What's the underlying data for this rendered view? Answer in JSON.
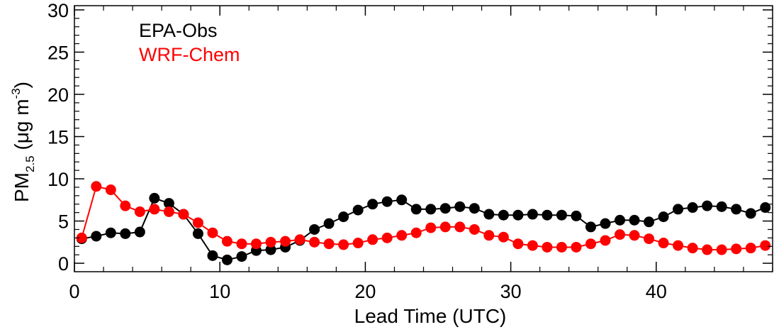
{
  "chart_data": {
    "type": "line",
    "title": "",
    "xlabel": "Lead Time (UTC)",
    "ylabel": {
      "base": "PM",
      "subscript": "2.5",
      "units_prefix": " (μg m",
      "superscript": "-3",
      "units_suffix": ")"
    },
    "xlim": [
      0,
      48
    ],
    "ylim": [
      -1,
      30.5
    ],
    "x_ticks": [
      0,
      10,
      20,
      30,
      40
    ],
    "y_ticks": [
      0,
      5,
      10,
      15,
      20,
      25,
      30
    ],
    "grid": false,
    "legend_position": "top-left",
    "x": [
      0.5,
      1.5,
      2.5,
      3.5,
      4.5,
      5.5,
      6.5,
      7.5,
      8.5,
      9.5,
      10.5,
      11.5,
      12.5,
      13.5,
      14.5,
      15.5,
      16.5,
      17.5,
      18.5,
      19.5,
      20.5,
      21.5,
      22.5,
      23.5,
      24.5,
      25.5,
      26.5,
      27.5,
      28.5,
      29.5,
      30.5,
      31.5,
      32.5,
      33.5,
      34.5,
      35.5,
      36.5,
      37.5,
      38.5,
      39.5,
      40.5,
      41.5,
      42.5,
      43.5,
      44.5,
      45.5,
      46.5,
      47.5
    ],
    "series": [
      {
        "name": "EPA-Obs",
        "color": "#000000",
        "values": [
          2.9,
          3.2,
          3.6,
          3.5,
          3.7,
          7.7,
          7.1,
          5.8,
          3.5,
          0.9,
          0.4,
          0.8,
          1.5,
          1.6,
          1.9,
          2.7,
          4.0,
          4.7,
          5.5,
          6.3,
          7.0,
          7.3,
          7.5,
          6.4,
          6.4,
          6.5,
          6.7,
          6.5,
          5.8,
          5.7,
          5.7,
          5.8,
          5.7,
          5.7,
          5.6,
          4.3,
          4.7,
          5.1,
          5.1,
          4.9,
          5.5,
          6.4,
          6.6,
          6.8,
          6.7,
          6.4,
          5.9,
          6.6
        ]
      },
      {
        "name": "WRF-Chem",
        "color": "#ff0000",
        "values": [
          3.0,
          9.1,
          8.7,
          6.8,
          6.1,
          6.4,
          6.1,
          5.8,
          4.8,
          3.6,
          2.6,
          2.3,
          2.3,
          2.5,
          2.6,
          2.8,
          2.5,
          2.3,
          2.2,
          2.4,
          2.8,
          3.0,
          3.3,
          3.6,
          4.2,
          4.3,
          4.3,
          4.0,
          3.3,
          3.1,
          2.3,
          2.1,
          1.9,
          1.9,
          1.9,
          2.3,
          2.7,
          3.4,
          3.3,
          2.9,
          2.4,
          2.1,
          1.8,
          1.6,
          1.6,
          1.7,
          1.8,
          2.1
        ]
      }
    ]
  }
}
